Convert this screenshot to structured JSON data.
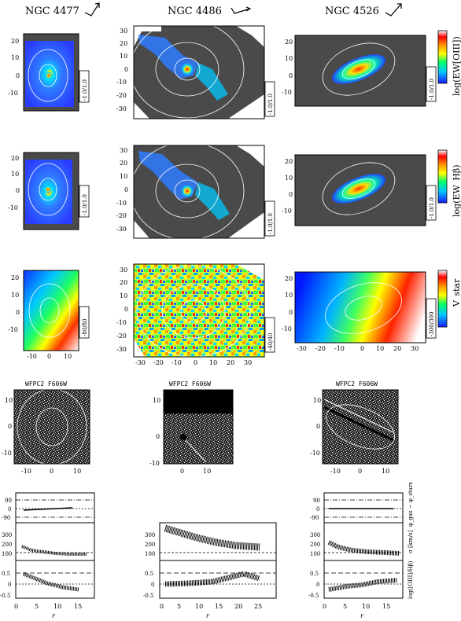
{
  "header": {
    "galaxies": [
      {
        "name": "NGC 4477"
      },
      {
        "name": "NGC 4486"
      },
      {
        "name": "NGC 4526"
      }
    ]
  },
  "maps": {
    "row_labels": {
      "oiii": "log(EW[OIII])",
      "hb": "log(EW_Hβ)",
      "vstar": "V_star"
    },
    "ranges": {
      "oiii": [
        "-1.0/1.0",
        "-1.0/1.0",
        "-1.0/1.0"
      ],
      "hb": [
        "-1.0/1.0",
        "-1.0/1.0",
        "-1.0/1.0"
      ],
      "vstar": [
        "-80/80",
        "-40/40",
        "-300/300"
      ]
    },
    "y_ticks": [
      [
        "20",
        "10",
        "0",
        "-10"
      ],
      [
        "30",
        "20",
        "10",
        "0",
        "-10",
        "-20",
        "-30"
      ],
      [
        "20",
        "10",
        "0",
        "-10"
      ]
    ],
    "x_ticks": [
      [
        "-10",
        "0",
        "10"
      ],
      [
        "-30",
        "-20",
        "-10",
        "0",
        "10",
        "20",
        "30"
      ],
      [
        "-30",
        "-20",
        "-10",
        "0",
        "10",
        "20",
        "30"
      ]
    ]
  },
  "hst": {
    "titles": [
      "WFPC2 F606W",
      "WFPC2 F606W",
      "WFPC2 F606W"
    ],
    "y_ticks": [
      [
        "10",
        "0",
        "-10"
      ],
      [
        "10",
        "0",
        "-10"
      ],
      [
        "10",
        "0",
        "-10"
      ]
    ],
    "x_ticks": [
      [
        "-10",
        "0",
        "10"
      ],
      [
        "0",
        "10"
      ],
      [
        "-10",
        "0",
        "10"
      ]
    ]
  },
  "profiles": {
    "right_labels": [
      "φ_gas − φ_stars",
      "σ [km/s]",
      "log([OIII]/Hβ)"
    ],
    "top_ticks": [
      "90",
      "0",
      "-90"
    ],
    "mid_ticks": [
      "300",
      "200",
      "100"
    ],
    "bot_ticks": [
      "0.5",
      "0",
      "-0.5"
    ],
    "x_ticks": [
      [
        "0",
        "5",
        "10",
        "15"
      ],
      [
        "0",
        "5",
        "10",
        "15",
        "20",
        "25"
      ],
      [
        "0",
        "5",
        "10",
        "15"
      ]
    ],
    "xlabel": "r"
  },
  "colors": {
    "background": "#ffffff",
    "panel_gray": "#4a4a4a",
    "colorbar_stops": [
      "#1a1aff",
      "#00c8ff",
      "#00ff66",
      "#ffff00",
      "#ff9900",
      "#ff0000",
      "#ffffff"
    ]
  }
}
